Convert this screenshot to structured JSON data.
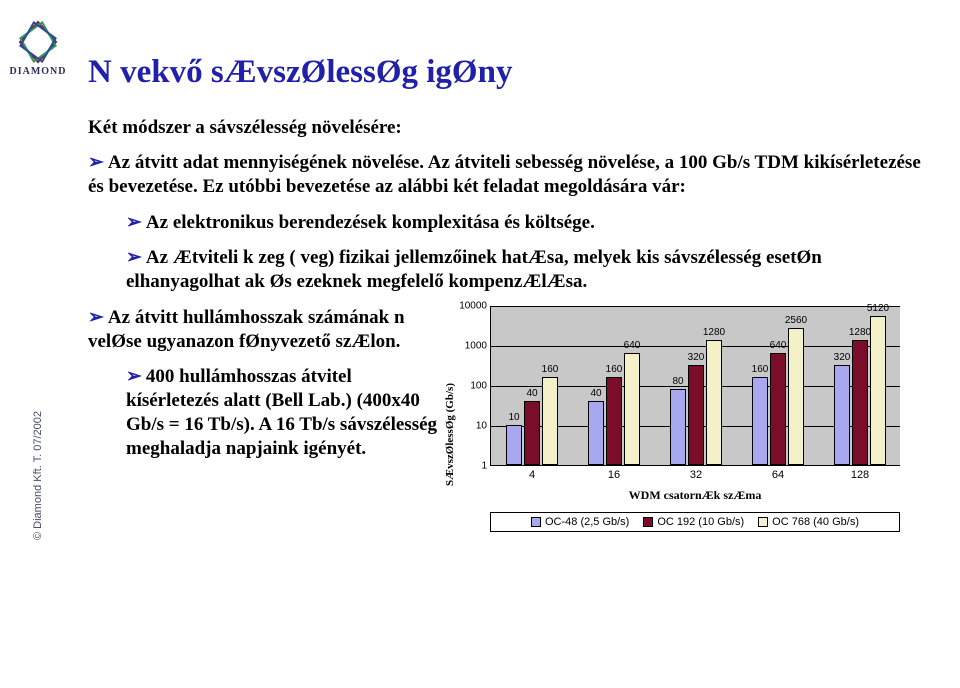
{
  "logo": {
    "label": "DIAMOND"
  },
  "copyright": "© Diamond Kft. T. 07/2002",
  "title": "N vekvő sÆvszØlessØg igØny",
  "intro": "Két módszer a sávszélesség növelésére:",
  "b1": "Az átvitt adat mennyiségének növelése. Az átviteli sebesség növelése, a 100 Gb/s TDM kikísérletezése és bevezetése. Ez utóbbi bevezetése az alábbi két feladat megoldására vár:",
  "b2": "Az elektronikus berendezések komplexitása és költsége.",
  "b3": "Az Ætviteli k zeg ( veg) fizikai jellemzőinek hatÆsa, melyek kis sávszélesség esetØn elhanyagolhat ak Øs ezeknek megfelelő kompenzÆlÆsa.",
  "b4": "Az átvitt hullámhosszak számának n velØse ugyanazon fØnyvezető szÆlon.",
  "b5": "400 hullámhosszas átvitel kísérletezés alatt (Bell Lab.) (400x40 Gb/s = 16 Tb/s). A 16 Tb/s sávszélesség meghaladja napjaink igényét.",
  "chart": {
    "y_label": "SÆvszØlessØg (Gb/s)",
    "x_label": "WDM csatornÆk szÆma",
    "log_min": 0,
    "log_max": 4,
    "yticks": [
      "1",
      "10",
      "100",
      "1000",
      "10000"
    ],
    "colors": {
      "s1": "#a8a8f0",
      "s2": "#7a0e2a",
      "s3": "#f4f0c8"
    },
    "categories": [
      "4",
      "16",
      "32",
      "64",
      "128"
    ],
    "series": [
      {
        "name": "OC-48 (2,5 Gb/s)",
        "color": "#a8a8f0",
        "values": [
          10,
          40,
          80,
          160,
          320
        ]
      },
      {
        "name": "OC 192 (10 Gb/s)",
        "color": "#7a0e2a",
        "values": [
          40,
          160,
          320,
          640,
          1280
        ]
      },
      {
        "name": "OC 768 (40 Gb/s)",
        "color": "#f4f0c8",
        "values": [
          160,
          640,
          1280,
          2560,
          5120
        ]
      }
    ]
  }
}
